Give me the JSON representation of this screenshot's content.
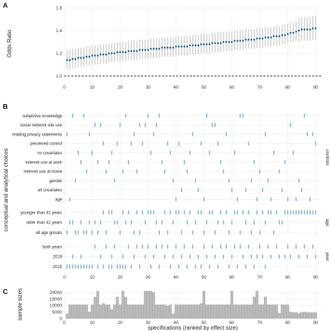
{
  "chart_data": [
    {
      "panel": "A",
      "type": "line",
      "ylabel": "Odds Ratio",
      "xlim": [
        0,
        92
      ],
      "ylim": [
        0.95,
        1.62
      ],
      "xticks": [
        0,
        10,
        20,
        30,
        40,
        50,
        60,
        70,
        80,
        90
      ],
      "yticks": [
        1.0,
        1.2,
        1.4,
        1.6
      ],
      "yticklabels": [
        "1.0",
        "1.2",
        "1.4",
        "1.6"
      ],
      "reference_line": 1.0,
      "grid": true,
      "colors": {
        "point": "#1f5f8b",
        "interval": "#a9a9a9",
        "reference": "#222222"
      },
      "series": [
        {
          "x": [
            1,
            2,
            3,
            4,
            5,
            6,
            7,
            8,
            9,
            10,
            11,
            12,
            13,
            14,
            15,
            16,
            17,
            18,
            19,
            20,
            21,
            22,
            23,
            24,
            25,
            26,
            27,
            28,
            29,
            30,
            31,
            32,
            33,
            34,
            35,
            36,
            37,
            38,
            39,
            40,
            41,
            42,
            43,
            44,
            45,
            46,
            47,
            48,
            49,
            50,
            51,
            52,
            53,
            54,
            55,
            56,
            57,
            58,
            59,
            60,
            61,
            62,
            63,
            64,
            65,
            66,
            67,
            68,
            69,
            70,
            71,
            72,
            73,
            74,
            75,
            76,
            77,
            78,
            79,
            80,
            81,
            82,
            83,
            84,
            85,
            86,
            87,
            88,
            89,
            90
          ],
          "y": [
            1.14,
            1.14,
            1.15,
            1.15,
            1.16,
            1.16,
            1.16,
            1.17,
            1.17,
            1.18,
            1.18,
            1.18,
            1.19,
            1.19,
            1.19,
            1.2,
            1.2,
            1.2,
            1.21,
            1.21,
            1.21,
            1.21,
            1.22,
            1.22,
            1.22,
            1.22,
            1.23,
            1.23,
            1.23,
            1.23,
            1.24,
            1.24,
            1.24,
            1.24,
            1.25,
            1.25,
            1.25,
            1.25,
            1.25,
            1.26,
            1.26,
            1.26,
            1.26,
            1.26,
            1.27,
            1.27,
            1.27,
            1.27,
            1.28,
            1.28,
            1.28,
            1.28,
            1.29,
            1.29,
            1.29,
            1.29,
            1.3,
            1.3,
            1.3,
            1.3,
            1.31,
            1.31,
            1.31,
            1.31,
            1.32,
            1.32,
            1.32,
            1.32,
            1.33,
            1.33,
            1.33,
            1.34,
            1.34,
            1.34,
            1.35,
            1.35,
            1.35,
            1.36,
            1.36,
            1.37,
            1.38,
            1.38,
            1.39,
            1.4,
            1.41,
            1.41,
            1.41,
            1.41,
            1.42,
            1.42
          ],
          "lower": [
            1.06,
            1.06,
            1.07,
            1.07,
            1.08,
            1.08,
            1.08,
            1.09,
            1.09,
            1.1,
            1.1,
            1.1,
            1.11,
            1.11,
            1.11,
            1.12,
            1.12,
            1.12,
            1.13,
            1.13,
            1.13,
            1.13,
            1.14,
            1.14,
            1.14,
            1.14,
            1.15,
            1.15,
            1.15,
            1.15,
            1.16,
            1.16,
            1.16,
            1.16,
            1.17,
            1.17,
            1.17,
            1.17,
            1.17,
            1.18,
            1.18,
            1.18,
            1.18,
            1.18,
            1.19,
            1.19,
            1.19,
            1.19,
            1.2,
            1.2,
            1.2,
            1.2,
            1.21,
            1.21,
            1.21,
            1.21,
            1.22,
            1.22,
            1.22,
            1.22,
            1.23,
            1.23,
            1.23,
            1.23,
            1.24,
            1.24,
            1.24,
            1.24,
            1.25,
            1.25,
            1.25,
            1.26,
            1.26,
            1.26,
            1.27,
            1.27,
            1.27,
            1.28,
            1.28,
            1.29,
            1.3,
            1.3,
            1.31,
            1.3,
            1.31,
            1.31,
            1.31,
            1.31,
            1.32,
            1.32
          ],
          "upper": [
            1.23,
            1.23,
            1.24,
            1.24,
            1.25,
            1.25,
            1.25,
            1.26,
            1.26,
            1.27,
            1.27,
            1.27,
            1.28,
            1.28,
            1.28,
            1.29,
            1.29,
            1.29,
            1.3,
            1.3,
            1.3,
            1.3,
            1.31,
            1.31,
            1.31,
            1.31,
            1.32,
            1.32,
            1.32,
            1.32,
            1.33,
            1.33,
            1.33,
            1.33,
            1.34,
            1.34,
            1.34,
            1.34,
            1.34,
            1.35,
            1.35,
            1.35,
            1.35,
            1.35,
            1.36,
            1.36,
            1.36,
            1.36,
            1.37,
            1.37,
            1.37,
            1.37,
            1.38,
            1.38,
            1.38,
            1.38,
            1.39,
            1.39,
            1.39,
            1.39,
            1.4,
            1.4,
            1.4,
            1.4,
            1.41,
            1.41,
            1.41,
            1.41,
            1.42,
            1.42,
            1.42,
            1.43,
            1.43,
            1.43,
            1.44,
            1.44,
            1.44,
            1.45,
            1.45,
            1.46,
            1.47,
            1.47,
            1.48,
            1.51,
            1.52,
            1.52,
            1.52,
            1.52,
            1.53,
            1.53
          ]
        }
      ]
    },
    {
      "panel": "B",
      "type": "scatter",
      "ylabel": "conceptual and analytical choices",
      "xlim": [
        0,
        92
      ],
      "xticks": [
        0,
        10,
        20,
        30,
        40,
        50,
        60,
        70,
        80,
        90
      ],
      "grid": true,
      "colors": {
        "mark": "#6aa3cc"
      },
      "groups": [
        {
          "label": "controls",
          "rows": [
            {
              "label": "subjective knowledge",
              "x": [
                3,
                7,
                22,
                30,
                34,
                51,
                63,
                64,
                86
              ]
            },
            {
              "label": "social network site use",
              "x": [
                11,
                13,
                20,
                27,
                29,
                33,
                53,
                54,
                81
              ]
            },
            {
              "label": "reading privacy statements",
              "x": [
                1,
                9,
                25,
                32,
                46,
                58,
                72,
                87,
                89
              ]
            },
            {
              "label": "perceived control",
              "x": [
                14,
                19,
                24,
                28,
                37,
                41,
                49,
                55,
                66,
                90
              ]
            },
            {
              "label": "no covariates",
              "x": [
                5,
                10,
                17,
                31,
                38,
                45,
                52,
                61,
                75,
                82
              ]
            },
            {
              "label": "Internet use at work",
              "x": [
                6,
                12,
                16,
                23,
                35,
                43,
                56,
                68,
                79
              ]
            },
            {
              "label": "Internet use at home",
              "x": [
                8,
                15,
                21,
                26,
                36,
                44,
                57,
                70,
                77
              ]
            },
            {
              "label": "gender",
              "x": [
                4,
                18,
                39,
                47,
                59,
                67,
                73,
                84
              ]
            },
            {
              "label": "all covariates",
              "x": [
                42,
                48,
                60,
                65,
                71,
                78,
                85
              ]
            },
            {
              "label": "age",
              "x": [
                2,
                40,
                50,
                62,
                69,
                74,
                80,
                83,
                88
              ]
            }
          ]
        },
        {
          "label": "age",
          "rows": [
            {
              "label": "younger than 41 years",
              "x": [
                14,
                16,
                17,
                21,
                23,
                26,
                28,
                30,
                31,
                32,
                36,
                38,
                40,
                41,
                43,
                45,
                48,
                49,
                52,
                53,
                56,
                58,
                61,
                62,
                64,
                66,
                69,
                71,
                73,
                74,
                76,
                79,
                80,
                81,
                82,
                83,
                84,
                85,
                86,
                87,
                88,
                89,
                90
              ]
            },
            {
              "label": "older than 41 years",
              "x": [
                2,
                3,
                6,
                9,
                11,
                13,
                18,
                19,
                22,
                24,
                29,
                33,
                35,
                39,
                44,
                47,
                51,
                55,
                57,
                60,
                65,
                68,
                72,
                77,
                78
              ]
            },
            {
              "label": "all age groups",
              "x": [
                1,
                4,
                5,
                7,
                8,
                10,
                12,
                15,
                20,
                25,
                27,
                34,
                37,
                42,
                46,
                50,
                54,
                59,
                63,
                67,
                70,
                75
              ]
            }
          ]
        },
        {
          "label": "year",
          "rows": [
            {
              "label": "both years",
              "x": [
                11,
                15,
                18,
                23,
                26,
                28,
                30,
                33,
                35,
                37,
                40,
                43,
                46,
                50,
                53,
                56,
                58,
                61,
                63,
                66,
                70,
                73,
                76,
                80,
                83,
                86,
                89
              ]
            },
            {
              "label": "2019",
              "x": [
                3,
                6,
                13,
                17,
                21,
                25,
                29,
                32,
                36,
                39,
                42,
                45,
                48,
                51,
                54,
                57,
                60,
                64,
                67,
                69,
                71,
                74,
                77,
                79,
                81,
                84,
                87,
                90
              ]
            },
            {
              "label": "2015",
              "x": [
                1,
                2,
                3,
                4,
                5,
                6,
                7,
                8,
                9,
                10,
                12,
                14,
                16,
                17,
                19,
                20,
                21,
                22,
                24,
                27,
                31,
                34,
                38,
                41,
                44,
                47,
                49,
                52,
                55,
                59,
                62,
                65,
                68,
                72
              ]
            }
          ]
        }
      ]
    },
    {
      "panel": "C",
      "type": "bar",
      "ylabel": "sample sizes",
      "xlabel": "specifications (ranked by effect size)",
      "xlim": [
        0,
        92
      ],
      "ylim": [
        0,
        21500
      ],
      "xticks": [
        0,
        10,
        20,
        30,
        40,
        50,
        60,
        70,
        80,
        90
      ],
      "yticks": [
        0,
        5000,
        10000,
        15000,
        20000
      ],
      "yticklabels": [
        "0",
        "5000",
        "10000",
        "15000",
        "20000"
      ],
      "grid": true,
      "colors": {
        "bar": "#bdbdbd",
        "bar_edge": "#8a8a8a"
      },
      "x": [
        1,
        2,
        3,
        4,
        5,
        6,
        7,
        8,
        9,
        10,
        11,
        12,
        13,
        14,
        15,
        16,
        17,
        18,
        19,
        20,
        21,
        22,
        23,
        24,
        25,
        26,
        27,
        28,
        29,
        30,
        31,
        32,
        33,
        34,
        35,
        36,
        37,
        38,
        39,
        40,
        41,
        42,
        43,
        44,
        45,
        46,
        47,
        48,
        49,
        50,
        51,
        52,
        53,
        54,
        55,
        56,
        57,
        58,
        59,
        60,
        61,
        62,
        63,
        64,
        65,
        66,
        67,
        68,
        69,
        70,
        71,
        72,
        73,
        74,
        75,
        76,
        77,
        78,
        79,
        80,
        81,
        82,
        83,
        84,
        85,
        86,
        87,
        88,
        89,
        90
      ],
      "values": [
        3500,
        10500,
        10500,
        10500,
        10500,
        10500,
        10500,
        10500,
        5000,
        10500,
        16500,
        21000,
        10500,
        11500,
        10500,
        10500,
        7000,
        10500,
        16500,
        10500,
        21000,
        16500,
        10500,
        10500,
        10500,
        10500,
        10500,
        10500,
        21000,
        21000,
        21000,
        20000,
        10500,
        10500,
        10500,
        10500,
        9500,
        10500,
        3500,
        10500,
        10500,
        10500,
        10500,
        10500,
        10500,
        10500,
        10500,
        10500,
        11500,
        21000,
        10500,
        10500,
        10500,
        10500,
        10500,
        10500,
        10500,
        10500,
        10500,
        21000,
        10500,
        10500,
        10500,
        10500,
        10500,
        10500,
        10500,
        16500,
        21000,
        10500,
        10500,
        16500,
        10500,
        10500,
        10500,
        10500,
        4000,
        10500,
        10500,
        10500,
        5000,
        4500,
        4500,
        4000,
        4500,
        5000,
        4500,
        4500,
        4500,
        4500
      ]
    }
  ]
}
